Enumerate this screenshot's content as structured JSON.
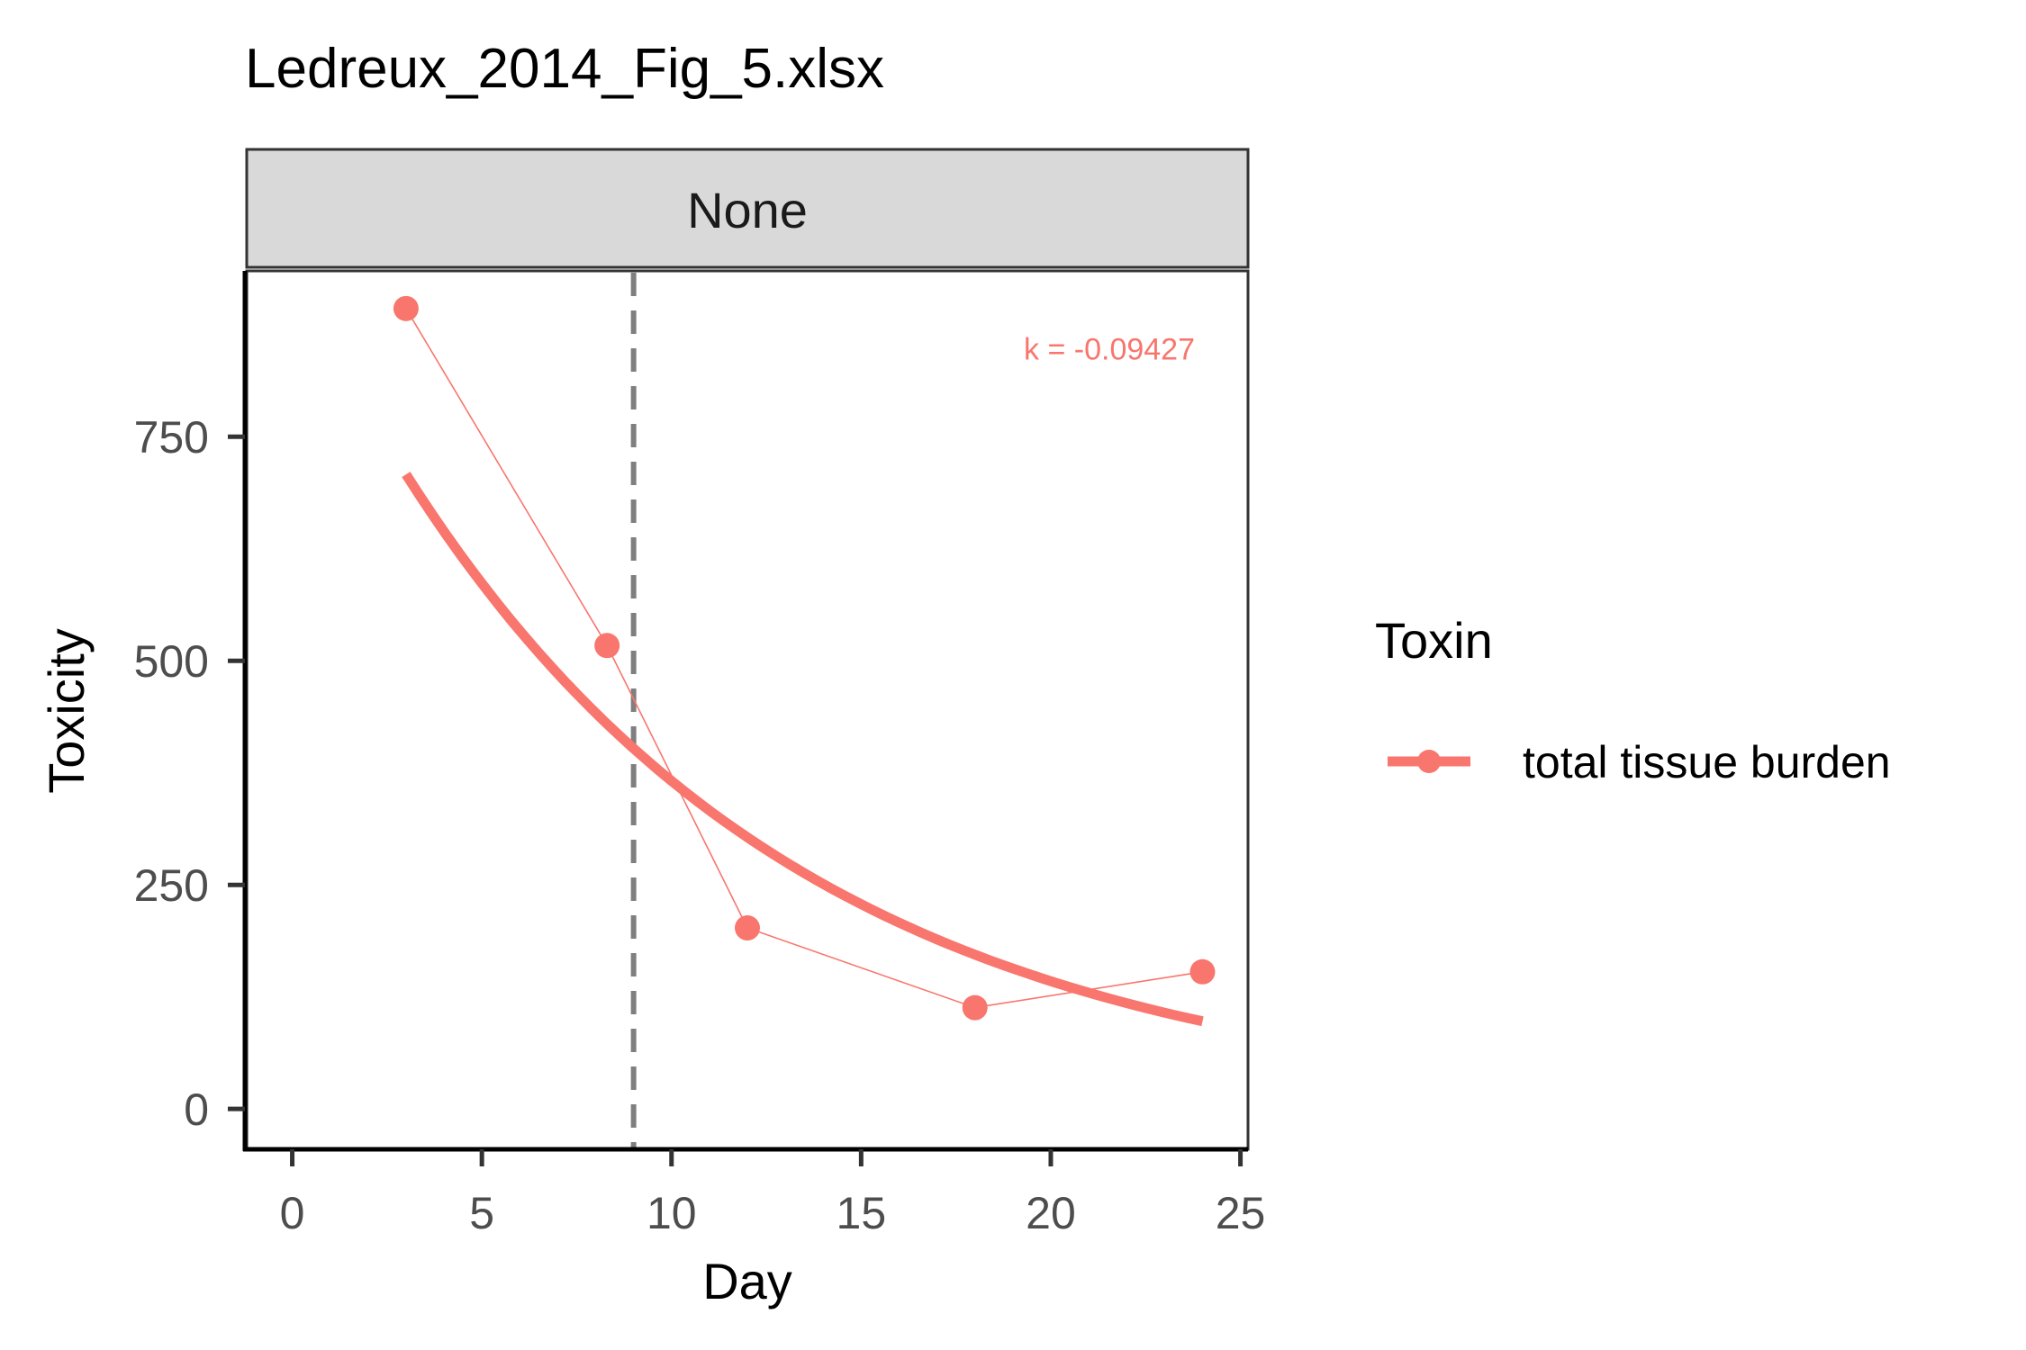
{
  "chart_data": {
    "type": "line",
    "title": "Ledreux_2014_Fig_5.xlsx",
    "facet_label": "None",
    "xlabel": "Day",
    "ylabel": "Toxicity",
    "xlim": [
      -1.2,
      25.2
    ],
    "ylim": [
      -45,
      935
    ],
    "x_ticks": [
      0,
      5,
      10,
      15,
      20,
      25
    ],
    "y_ticks": [
      0,
      250,
      500,
      750
    ],
    "grid": false,
    "legend": {
      "title": "Toxin",
      "position": "right",
      "items": [
        {
          "label": "total tissue burden",
          "color": "#F8766D"
        }
      ]
    },
    "vline": {
      "x": 9,
      "style": "dashed",
      "color": "#7f7f7f"
    },
    "annotation": {
      "text": "k = -0.09427",
      "x": 23.8,
      "y": 848,
      "color": "#F8766D"
    },
    "series": [
      {
        "name": "total tissue burden",
        "color": "#F8766D",
        "x": [
          3,
          8.3,
          12,
          18,
          24
        ],
        "y": [
          893,
          517,
          202,
          113,
          153
        ]
      }
    ],
    "fit": {
      "model": "exponential decay",
      "k": -0.09427,
      "x_range": [
        3,
        24
      ],
      "y_start": 708,
      "color": "#F8766D"
    }
  }
}
